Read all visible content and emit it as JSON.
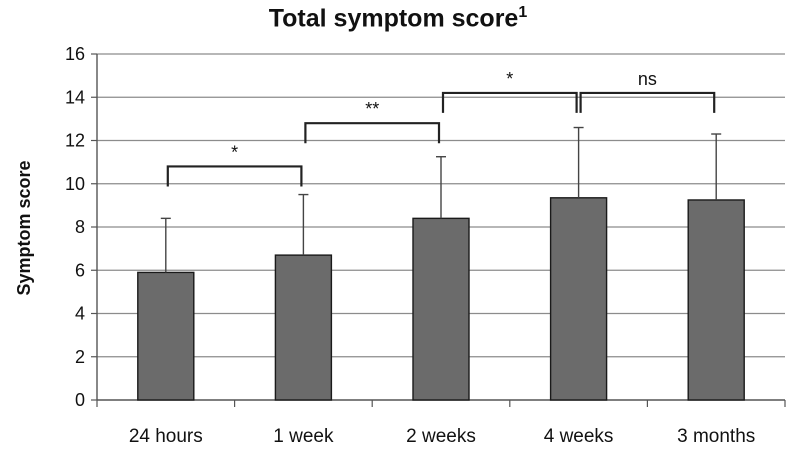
{
  "chart_data": {
    "type": "bar",
    "title": "Total symptom score",
    "title_superscript": "1",
    "ylabel": "Symptom score",
    "xlabel": "",
    "ylim": [
      0,
      16
    ],
    "yticks": [
      0,
      2,
      4,
      6,
      8,
      10,
      12,
      14,
      16
    ],
    "grid": true,
    "categories": [
      "24 hours",
      "1 week",
      "2 weeks",
      "4 weeks",
      "3 months"
    ],
    "values": [
      5.9,
      6.7,
      8.4,
      9.35,
      9.25
    ],
    "error_upper": [
      8.4,
      9.5,
      11.25,
      12.6,
      12.3
    ],
    "bar_color": "#6b6b6b",
    "significance": [
      {
        "from": "24 hours",
        "to": "1 week",
        "label": "*",
        "y": 10.8
      },
      {
        "from": "1 week",
        "to": "2 weeks",
        "label": "**",
        "y": 12.8
      },
      {
        "from": "2 weeks",
        "to": "4 weeks",
        "label": "*",
        "y": 14.2
      },
      {
        "from": "4 weeks",
        "to": "3 months",
        "label": "ns",
        "y": 14.2
      }
    ]
  }
}
